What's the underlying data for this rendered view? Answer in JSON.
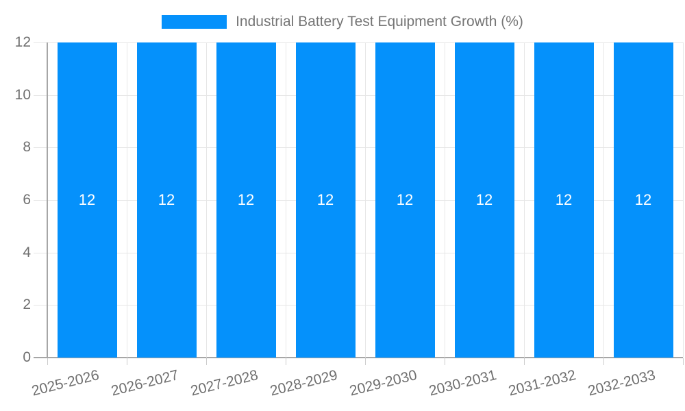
{
  "legend": {
    "series_label": "Industrial Battery Test Equipment Growth (%)"
  },
  "chart_data": {
    "type": "bar",
    "title": "Industrial Battery Test Equipment Growth (%)",
    "categories": [
      "2025-2026",
      "2026-2027",
      "2027-2028",
      "2028-2029",
      "2029-2030",
      "2030-2031",
      "2031-2032",
      "2032-2033"
    ],
    "values": [
      12,
      12,
      12,
      12,
      12,
      12,
      12,
      12
    ],
    "bar_labels": [
      "12",
      "12",
      "12",
      "12",
      "12",
      "12",
      "12",
      "12"
    ],
    "xlabel": "",
    "ylabel": "",
    "ylim": [
      0,
      12
    ],
    "yticks": [
      0,
      2,
      4,
      6,
      8,
      10,
      12
    ],
    "ytick_labels": [
      "0",
      "2",
      "4",
      "6",
      "8",
      "10",
      "12"
    ],
    "grid": true,
    "legend_position": "top",
    "colors": {
      "bar": "#0591fb",
      "grid": "#e6e6e6",
      "axis": "#a6a6a6",
      "tick": "#cccccc",
      "axis_text": "#6f6f6f",
      "title_text": "#757575",
      "bar_label": "#ffffff",
      "background": "#ffffff"
    }
  }
}
